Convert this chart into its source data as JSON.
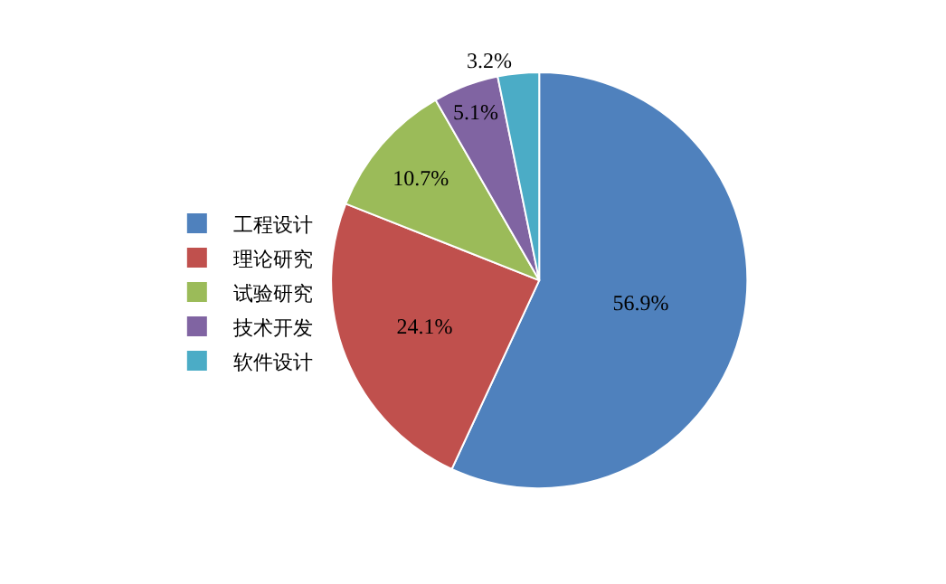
{
  "chart_data": {
    "type": "pie",
    "categories": [
      "工程设计",
      "理论研究",
      "试验研究",
      "技术开发",
      "软件设计"
    ],
    "values": [
      56.9,
      24.1,
      10.7,
      5.1,
      3.2
    ],
    "colors": [
      "#4f81bd",
      "#c0504d",
      "#9bbb59",
      "#8064a2",
      "#4bacc6"
    ],
    "value_labels": [
      "56.9%",
      "24.1%",
      "10.7%",
      "5.1%",
      "3.2%"
    ],
    "legend": "left"
  }
}
